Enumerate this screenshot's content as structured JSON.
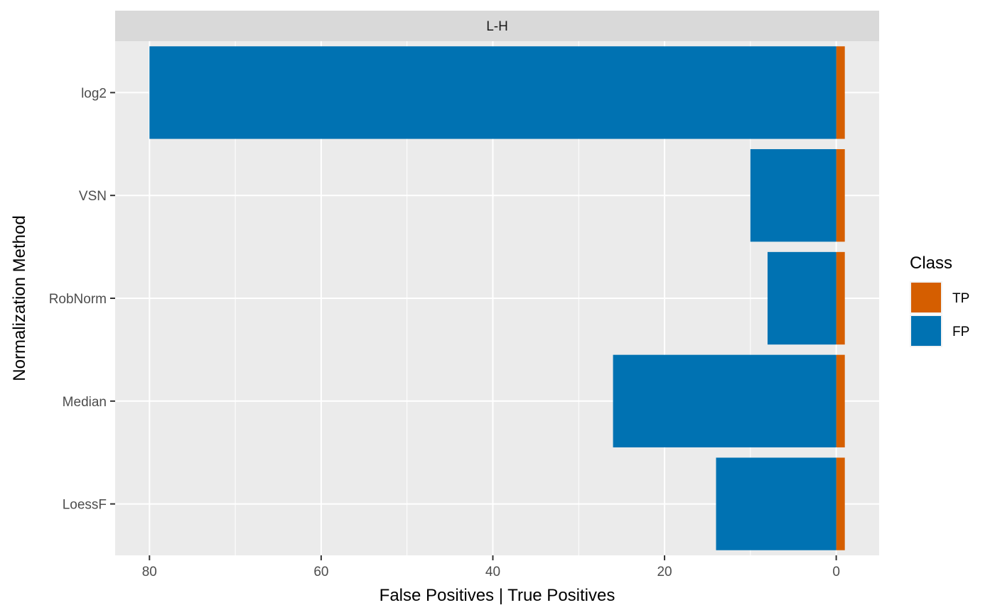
{
  "chart_data": {
    "type": "bar",
    "orientation": "horizontal",
    "stacked": true,
    "facet_label": "L-H",
    "xlabel": "False Positives | True Positives",
    "ylabel": "Normalization Method",
    "categories": [
      "log2",
      "VSN",
      "RobNorm",
      "Median",
      "LoessF"
    ],
    "x_reversed": true,
    "xlim": [
      -5,
      84
    ],
    "x_ticks": [
      80,
      60,
      40,
      20,
      0
    ],
    "x_tick_labels": [
      "80",
      "60",
      "40",
      "20",
      "0"
    ],
    "series": [
      {
        "name": "TP",
        "direction": "negative",
        "color": "#D55E00",
        "values": [
          1,
          1,
          1,
          1,
          1
        ]
      },
      {
        "name": "FP",
        "direction": "positive",
        "color": "#0072B2",
        "values": [
          80,
          10,
          8,
          26,
          14
        ]
      }
    ],
    "legend": {
      "title": "Class",
      "position": "right",
      "entries": [
        {
          "label": "TP",
          "color": "#D55E00"
        },
        {
          "label": "FP",
          "color": "#0072B2"
        }
      ]
    },
    "grid": true,
    "panel_background": "#EBEBEB",
    "strip_background": "#D9D9D9"
  }
}
